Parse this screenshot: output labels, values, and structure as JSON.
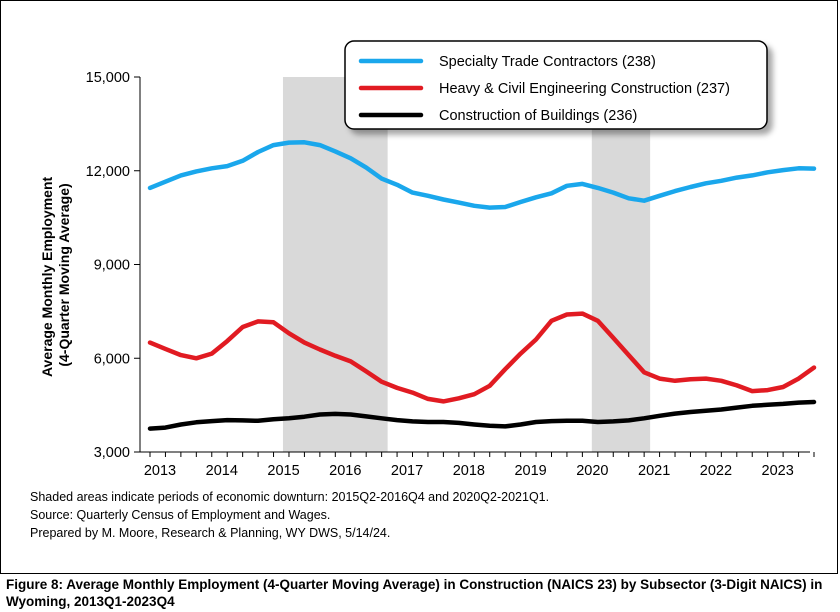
{
  "chart_data": {
    "type": "line",
    "title": "",
    "ylabel": "Average Monthly Employment (4-Quarter Moving Average)",
    "ylabel_lines": [
      "Average Monthly Employment",
      "(4-Quarter Moving Average)"
    ],
    "xlabel": "",
    "ylim": [
      3000,
      15000
    ],
    "yticks": [
      3000,
      6000,
      9000,
      12000,
      15000
    ],
    "ytick_labels": [
      "3,000",
      "6,000",
      "9,000",
      "12,000",
      "15,000"
    ],
    "xlim": [
      2013,
      2023.75
    ],
    "xticks": [
      2013,
      2014,
      2015,
      2016,
      2017,
      2018,
      2019,
      2020,
      2021,
      2022,
      2023
    ],
    "xtick_labels": [
      "2013",
      "2014",
      "2015",
      "2016",
      "2017",
      "2018",
      "2019",
      "2020",
      "2021",
      "2022",
      "2023"
    ],
    "grid": false,
    "legend_position": "top-right",
    "shaded_periods": [
      [
        2015.25,
        2016.75
      ],
      [
        2020.25,
        2021.0
      ]
    ],
    "x": [
      2013.0,
      2013.25,
      2013.5,
      2013.75,
      2014.0,
      2014.25,
      2014.5,
      2014.75,
      2015.0,
      2015.25,
      2015.5,
      2015.75,
      2016.0,
      2016.25,
      2016.5,
      2016.75,
      2017.0,
      2017.25,
      2017.5,
      2017.75,
      2018.0,
      2018.25,
      2018.5,
      2018.75,
      2019.0,
      2019.25,
      2019.5,
      2019.75,
      2020.0,
      2020.25,
      2020.5,
      2020.75,
      2021.0,
      2021.25,
      2021.5,
      2021.75,
      2022.0,
      2022.25,
      2022.5,
      2022.75,
      2023.0,
      2023.25,
      2023.5,
      2023.75
    ],
    "series": [
      {
        "name": "Specialty Trade Contractors (238)",
        "color": "#1aa7ec",
        "values": [
          11450,
          11650,
          11850,
          11980,
          12080,
          12150,
          12320,
          12600,
          12820,
          12900,
          12910,
          12820,
          12620,
          12400,
          12100,
          11750,
          11550,
          11300,
          11200,
          11080,
          10980,
          10880,
          10820,
          10840,
          11000,
          11150,
          11280,
          11520,
          11580,
          11450,
          11300,
          11120,
          11040,
          11200,
          11350,
          11480,
          11600,
          11680,
          11780,
          11850,
          11950,
          12020,
          12080,
          12070
        ]
      },
      {
        "name": "Heavy & Civil Engineering Construction (237)",
        "color": "#e11b22",
        "values": [
          6500,
          6300,
          6100,
          6000,
          6150,
          6550,
          7000,
          7180,
          7150,
          6800,
          6500,
          6280,
          6080,
          5900,
          5580,
          5250,
          5050,
          4900,
          4700,
          4620,
          4720,
          4850,
          5120,
          5650,
          6150,
          6600,
          7200,
          7400,
          7430,
          7200,
          6650,
          6100,
          5550,
          5350,
          5280,
          5330,
          5350,
          5280,
          5130,
          4950,
          4980,
          5080,
          5350,
          5700
        ]
      },
      {
        "name": "Construction of Buildings (236)",
        "color": "#000000",
        "values": [
          3750,
          3780,
          3880,
          3950,
          3990,
          4020,
          4010,
          4000,
          4050,
          4080,
          4130,
          4200,
          4220,
          4200,
          4140,
          4080,
          4020,
          3980,
          3960,
          3960,
          3930,
          3880,
          3840,
          3820,
          3880,
          3960,
          3990,
          4000,
          4000,
          3960,
          3980,
          4010,
          4080,
          4160,
          4230,
          4280,
          4320,
          4360,
          4420,
          4480,
          4510,
          4540,
          4580,
          4600
        ]
      }
    ]
  },
  "notes": {
    "line1": "Shaded areas indicate periods of economic downturn: 2015Q2-2016Q4 and 2020Q2-2021Q1.",
    "line2": "Source: Quarterly Census of Employment and Wages.",
    "line3": "Prepared by M. Moore, Research & Planning, WY DWS, 5/14/24."
  },
  "caption": "Figure 8: Average Monthly Employment (4-Quarter Moving Average) in Construction (NAICS 23) by Subsector (3-Digit NAICS) in Wyoming, 2013Q1-2023Q4"
}
